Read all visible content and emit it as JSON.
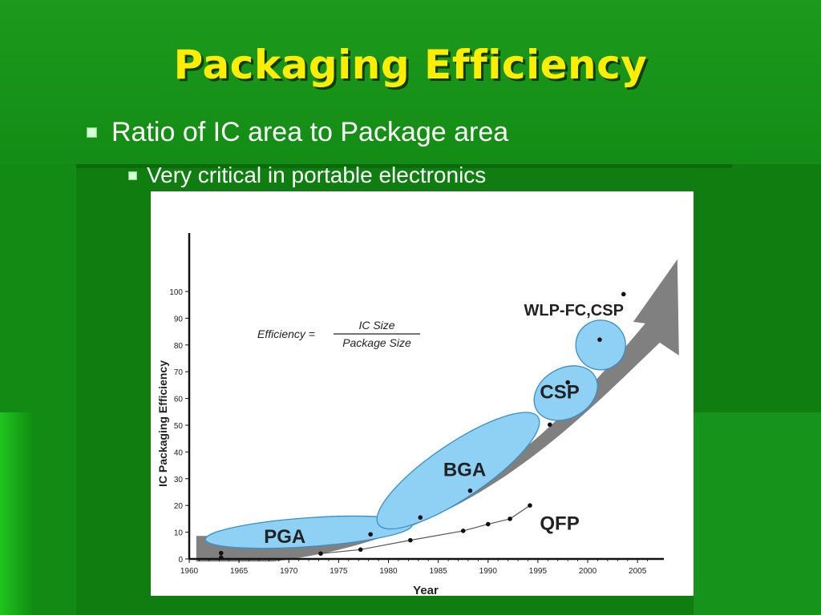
{
  "slide": {
    "title": "Packaging Efficiency",
    "bullets": [
      {
        "level": 1,
        "text": "Ratio of IC area to Package area"
      },
      {
        "level": 2,
        "text": "Very critical in portable electronics"
      }
    ]
  },
  "colors": {
    "background": "#138a14",
    "title": "#ffee00",
    "text": "#ffffff",
    "ellipse_fill": "#8fd0f5",
    "arrow": "#808080"
  },
  "chart_data": {
    "type": "scatter",
    "xlabel": "Year",
    "ylabel": "IC Packaging Efficiency",
    "xlim": [
      1960,
      2007
    ],
    "ylim": [
      0,
      100
    ],
    "x_ticks": [
      "1960",
      "1965",
      "1970",
      "1975",
      "1980",
      "1985",
      "1990",
      "1995",
      "2000",
      "2005"
    ],
    "y_ticks": [
      "0",
      "10",
      "20",
      "30",
      "40",
      "50",
      "60",
      "70",
      "80",
      "90",
      "100"
    ],
    "formula": {
      "lhs": "Efficiency =",
      "numerator": "IC Size",
      "denominator": "Package Size"
    },
    "regions": [
      {
        "label": "PGA",
        "center": [
          1972,
          10
        ],
        "x_radius": 8,
        "y_radius": 3.5
      },
      {
        "label": "BGA",
        "center": [
          1987,
          33
        ],
        "x_radius": 8,
        "y_radius": 12
      },
      {
        "label": "CSP",
        "center": [
          1997.8,
          62
        ],
        "x_radius": 2.8,
        "y_radius": 11
      },
      {
        "label": "WLP-FC,CSP",
        "center": [
          2001.3,
          80
        ],
        "x_radius": 2.2,
        "y_radius": 8
      }
    ],
    "series": [
      {
        "name": "QFP",
        "points": [
          [
            1973.2,
            2
          ],
          [
            1977.2,
            3.5
          ],
          [
            1982.2,
            7
          ],
          [
            1987.5,
            10.5
          ],
          [
            1990,
            13
          ],
          [
            1992.2,
            15
          ],
          [
            1994.2,
            20
          ]
        ]
      },
      {
        "points": [
          [
            1963.2,
            0.5
          ],
          [
            1963.2,
            2.2
          ],
          [
            1978.2,
            9.2
          ],
          [
            1983.2,
            15.5
          ],
          [
            1988.2,
            25.5
          ],
          [
            1996.2,
            50.2
          ],
          [
            1998,
            66
          ],
          [
            2001.2,
            82
          ],
          [
            2003.6,
            99
          ]
        ]
      }
    ],
    "trend_arrow": {
      "from": [
        1962,
        5
      ],
      "to": [
        2009,
        112
      ]
    }
  }
}
